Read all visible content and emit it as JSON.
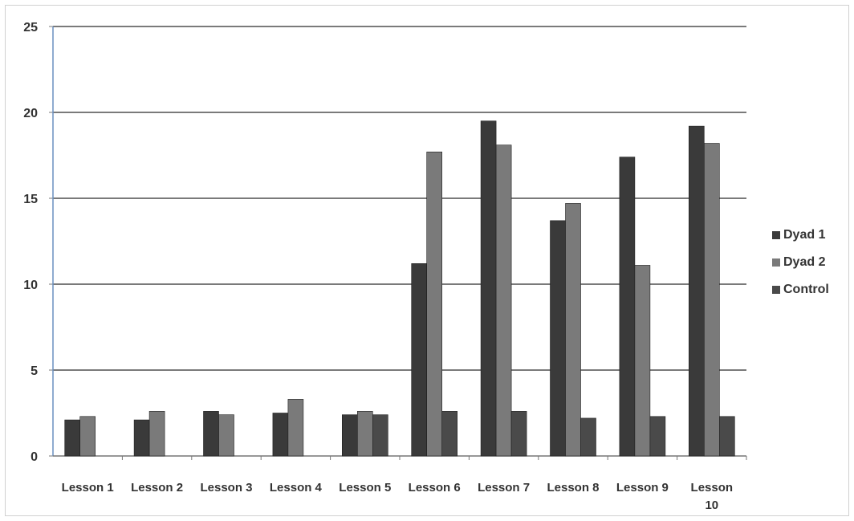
{
  "chart_data": {
    "type": "bar",
    "title": "",
    "xlabel": "",
    "ylabel": "",
    "ylim": [
      0,
      25
    ],
    "yticks": [
      "0",
      "5",
      "10",
      "15",
      "20",
      "25"
    ],
    "grid": true,
    "legend_position": "right",
    "categories": [
      "Lesson 1",
      "Lesson 2",
      "Lesson 3",
      "Lesson 4",
      "Lesson 5",
      "Lesson 6",
      "Lesson 7",
      "Lesson 8",
      "Lesson 9",
      "Lesson 10"
    ],
    "series": [
      {
        "name": "Dyad 1",
        "color": "#3a3a3a",
        "values": [
          2.1,
          2.1,
          2.6,
          2.5,
          2.4,
          11.2,
          19.5,
          13.7,
          17.4,
          19.2
        ]
      },
      {
        "name": "Dyad 2",
        "color": "#7a7a7a",
        "values": [
          2.3,
          2.6,
          2.4,
          3.3,
          2.6,
          17.7,
          18.1,
          14.7,
          11.1,
          18.2
        ]
      },
      {
        "name": "Control",
        "color": "#4a4a4a",
        "values": [
          null,
          null,
          null,
          null,
          2.4,
          2.6,
          2.6,
          2.2,
          2.3,
          2.3
        ]
      }
    ]
  }
}
